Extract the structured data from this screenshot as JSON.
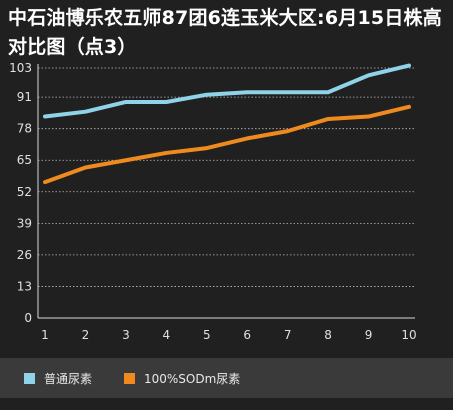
{
  "chart_data": {
    "type": "line",
    "title": "中石油博乐农五师87团6连玉米大区:6月15日株高对比图（点3）",
    "x": [
      1,
      2,
      3,
      4,
      5,
      6,
      7,
      8,
      9,
      10
    ],
    "y_ticks": [
      0,
      13,
      26,
      39,
      52,
      65,
      78,
      91,
      103
    ],
    "ylim": [
      0,
      103
    ],
    "grid": true,
    "legend_position": "bottom-left",
    "series": [
      {
        "name": "普通尿素",
        "color": "#8fd3e8",
        "values": [
          83,
          85,
          89,
          89,
          92,
          93,
          93,
          93,
          100,
          104
        ]
      },
      {
        "name": "100%SODm尿素",
        "color": "#ef8a1f",
        "values": [
          56,
          62,
          65,
          68,
          70,
          74,
          77,
          82,
          83,
          87
        ]
      }
    ]
  }
}
